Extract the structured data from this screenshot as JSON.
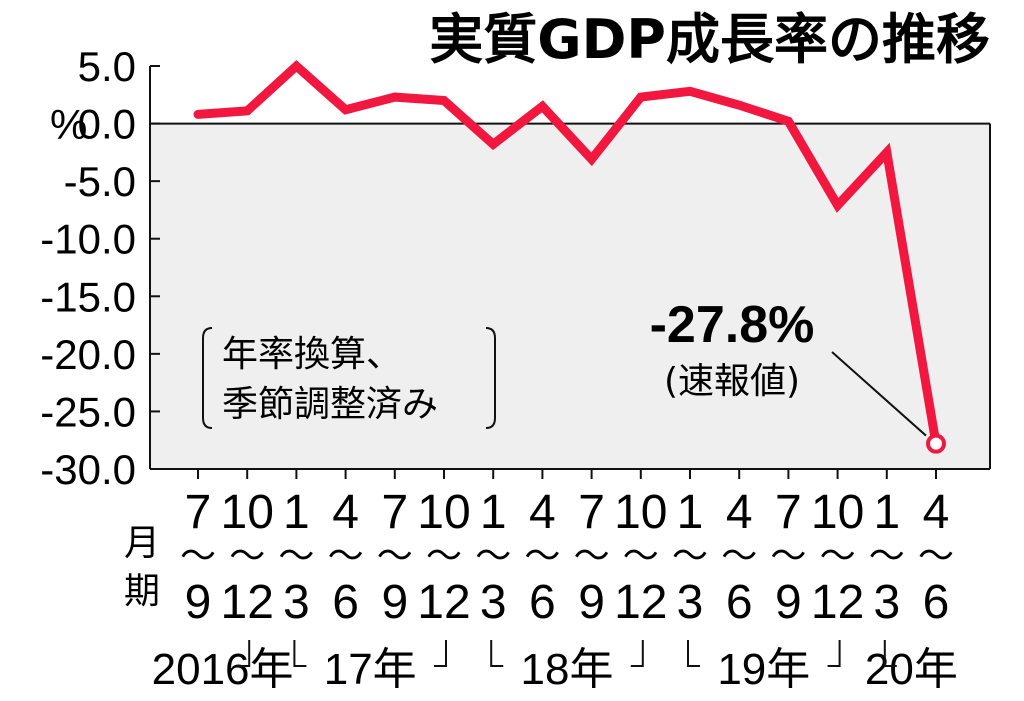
{
  "chart_data": {
    "type": "line",
    "title": "実質GDP成長率の推移",
    "unit": "%",
    "ylim": [
      -30,
      5
    ],
    "yticks": [
      {
        "v": 5,
        "label": "5.0"
      },
      {
        "v": 0,
        "label": "0.0"
      },
      {
        "v": -5,
        "label": "-5.0"
      },
      {
        "v": -10,
        "label": "-10.0"
      },
      {
        "v": -15,
        "label": "-15.0"
      },
      {
        "v": -20,
        "label": "-20.0"
      },
      {
        "v": -25,
        "label": "-25.0"
      },
      {
        "v": -30,
        "label": "-30.0"
      }
    ],
    "x_axis_caption_top": "月",
    "x_axis_caption_bottom": "期",
    "range_mark": "〜",
    "categories": [
      {
        "start": "7",
        "end": "9"
      },
      {
        "start": "10",
        "end": "12"
      },
      {
        "start": "1",
        "end": "3"
      },
      {
        "start": "4",
        "end": "6"
      },
      {
        "start": "7",
        "end": "9"
      },
      {
        "start": "10",
        "end": "12"
      },
      {
        "start": "1",
        "end": "3"
      },
      {
        "start": "4",
        "end": "6"
      },
      {
        "start": "7",
        "end": "9"
      },
      {
        "start": "10",
        "end": "12"
      },
      {
        "start": "1",
        "end": "3"
      },
      {
        "start": "4",
        "end": "6"
      },
      {
        "start": "7",
        "end": "9"
      },
      {
        "start": "10",
        "end": "12"
      },
      {
        "start": "1",
        "end": "3"
      },
      {
        "start": "4",
        "end": "6"
      }
    ],
    "years": [
      {
        "label": "2016年",
        "from": 0,
        "to": 1
      },
      {
        "label": "17年",
        "from": 2,
        "to": 5
      },
      {
        "label": "18年",
        "from": 6,
        "to": 9
      },
      {
        "label": "19年",
        "from": 10,
        "to": 13
      },
      {
        "label": "20年",
        "from": 14,
        "to": 15
      }
    ],
    "series": [
      {
        "values": [
          0.8,
          1.1,
          5.0,
          1.2,
          2.3,
          2.0,
          -1.8,
          1.5,
          -3.1,
          2.3,
          2.8,
          1.6,
          0.2,
          -7.1,
          -2.5,
          -27.8
        ]
      }
    ],
    "note_line1": "年率換算、",
    "note_line2": "季節調整済み",
    "annotation": {
      "value": "-27.8%",
      "sub": "(速報値)",
      "index": 15
    },
    "colors": {
      "line": "#f2173f",
      "negative_fill": "#efefef",
      "axis": "#111111"
    }
  }
}
